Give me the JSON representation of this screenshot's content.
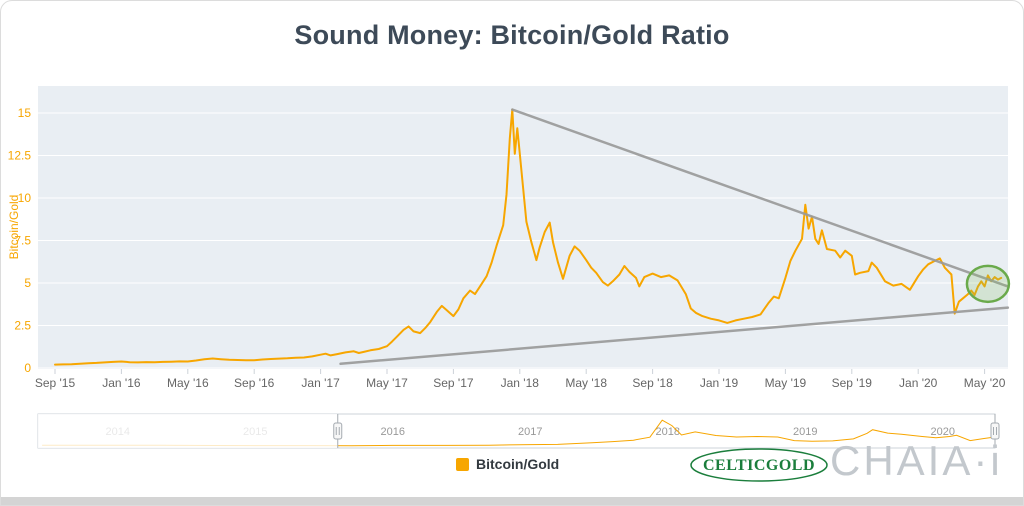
{
  "title": "Sound Money: Bitcoin/Gold Ratio",
  "legend": {
    "label": "Bitcoin/Gold"
  },
  "branding": {
    "celticgold": "CELTICGOLD",
    "chaia": "CHAIA·i"
  },
  "colors": {
    "series": "#f7a600",
    "plot_bg": "#e9eef3",
    "grid": "#ffffff",
    "y_axis": "#f7a600",
    "x_tick": "#666666",
    "tick_mark": "#ccd2d8",
    "trendline": "#999999",
    "annotation_stroke": "#6aaa4b",
    "annotation_fill": "rgba(130,190,100,0.22)",
    "title_text": "#3d4a58",
    "celticgold_green": "#1b7e3c",
    "chaia_gray": "#c3c8cd",
    "nav_label": "#999999",
    "nav_border": "#ccd3d9",
    "nav_handle": "#a5abb1"
  },
  "chart_data": {
    "type": "line",
    "title": "Sound Money: Bitcoin/Gold Ratio",
    "xlabel": "",
    "ylabel": "Bitcoin/Gold",
    "ylim": [
      0,
      16.6
    ],
    "grid": "horizontal white gridlines on light blue-gray plot background",
    "legend_position": "bottom-center",
    "x_unit": "months since Sep 2015",
    "yticks": [
      0,
      2.5,
      5,
      7.5,
      10,
      12.5,
      15
    ],
    "ytick_labels": [
      "0",
      "2.5",
      "5",
      "7.5",
      "10",
      "12.5",
      "15"
    ],
    "xtick_months": [
      0,
      4,
      8,
      12,
      16,
      20,
      24,
      28,
      32,
      36,
      40,
      44,
      48,
      52,
      56
    ],
    "xtick_labels": [
      "Sep '15",
      "Jan '16",
      "May '16",
      "Sep '16",
      "Jan '17",
      "May '17",
      "Sep '17",
      "Jan '18",
      "May '18",
      "Sep '18",
      "Jan '19",
      "May '19",
      "Sep '19",
      "Jan '20",
      "May '20"
    ],
    "series": [
      {
        "name": "Bitcoin/Gold",
        "points": [
          [
            0,
            0.2
          ],
          [
            0.5,
            0.21
          ],
          [
            1,
            0.22
          ],
          [
            1.5,
            0.25
          ],
          [
            2,
            0.28
          ],
          [
            2.5,
            0.3
          ],
          [
            3,
            0.33
          ],
          [
            3.5,
            0.36
          ],
          [
            4,
            0.38
          ],
          [
            4.5,
            0.34
          ],
          [
            5,
            0.33
          ],
          [
            5.5,
            0.35
          ],
          [
            6,
            0.34
          ],
          [
            6.5,
            0.36
          ],
          [
            7,
            0.37
          ],
          [
            7.5,
            0.39
          ],
          [
            8,
            0.38
          ],
          [
            8.5,
            0.44
          ],
          [
            9,
            0.52
          ],
          [
            9.5,
            0.56
          ],
          [
            10,
            0.52
          ],
          [
            10.5,
            0.48
          ],
          [
            11,
            0.47
          ],
          [
            11.5,
            0.46
          ],
          [
            12,
            0.46
          ],
          [
            12.5,
            0.5
          ],
          [
            13,
            0.53
          ],
          [
            13.5,
            0.55
          ],
          [
            14,
            0.57
          ],
          [
            14.5,
            0.6
          ],
          [
            15,
            0.62
          ],
          [
            15.5,
            0.68
          ],
          [
            16,
            0.78
          ],
          [
            16.3,
            0.84
          ],
          [
            16.6,
            0.74
          ],
          [
            17,
            0.82
          ],
          [
            17.5,
            0.92
          ],
          [
            18,
            0.98
          ],
          [
            18.3,
            0.88
          ],
          [
            18.6,
            0.95
          ],
          [
            19,
            1.04
          ],
          [
            19.5,
            1.12
          ],
          [
            20,
            1.28
          ],
          [
            20.3,
            1.55
          ],
          [
            20.6,
            1.85
          ],
          [
            21,
            2.25
          ],
          [
            21.3,
            2.45
          ],
          [
            21.6,
            2.15
          ],
          [
            22,
            2.05
          ],
          [
            22.3,
            2.35
          ],
          [
            22.6,
            2.7
          ],
          [
            23,
            3.3
          ],
          [
            23.3,
            3.65
          ],
          [
            23.6,
            3.4
          ],
          [
            24,
            3.05
          ],
          [
            24.3,
            3.45
          ],
          [
            24.6,
            4.1
          ],
          [
            25,
            4.55
          ],
          [
            25.3,
            4.35
          ],
          [
            25.6,
            4.8
          ],
          [
            26,
            5.4
          ],
          [
            26.3,
            6.2
          ],
          [
            26.6,
            7.2
          ],
          [
            27,
            8.4
          ],
          [
            27.2,
            10.2
          ],
          [
            27.4,
            13.5
          ],
          [
            27.55,
            15.2
          ],
          [
            27.7,
            12.6
          ],
          [
            27.85,
            14.1
          ],
          [
            28,
            12.6
          ],
          [
            28.2,
            10.6
          ],
          [
            28.4,
            8.6
          ],
          [
            28.7,
            7.4
          ],
          [
            29,
            6.35
          ],
          [
            29.2,
            7.1
          ],
          [
            29.5,
            8
          ],
          [
            29.8,
            8.55
          ],
          [
            30,
            7.4
          ],
          [
            30.3,
            6.2
          ],
          [
            30.6,
            5.25
          ],
          [
            31,
            6.6
          ],
          [
            31.3,
            7.15
          ],
          [
            31.6,
            6.9
          ],
          [
            32,
            6.35
          ],
          [
            32.3,
            5.9
          ],
          [
            32.6,
            5.6
          ],
          [
            33,
            5.05
          ],
          [
            33.3,
            4.85
          ],
          [
            33.6,
            5.1
          ],
          [
            34,
            5.5
          ],
          [
            34.3,
            6
          ],
          [
            34.6,
            5.65
          ],
          [
            35,
            5.3
          ],
          [
            35.2,
            4.8
          ],
          [
            35.5,
            5.35
          ],
          [
            36,
            5.55
          ],
          [
            36.5,
            5.35
          ],
          [
            37,
            5.45
          ],
          [
            37.5,
            5.15
          ],
          [
            38,
            4.35
          ],
          [
            38.3,
            3.5
          ],
          [
            38.6,
            3.25
          ],
          [
            39,
            3.05
          ],
          [
            39.5,
            2.9
          ],
          [
            40,
            2.8
          ],
          [
            40.5,
            2.65
          ],
          [
            41,
            2.8
          ],
          [
            41.5,
            2.9
          ],
          [
            42,
            3
          ],
          [
            42.5,
            3.15
          ],
          [
            43,
            3.85
          ],
          [
            43.3,
            4.2
          ],
          [
            43.6,
            4.1
          ],
          [
            44,
            5.3
          ],
          [
            44.3,
            6.3
          ],
          [
            44.6,
            6.9
          ],
          [
            45,
            7.6
          ],
          [
            45.2,
            9.6
          ],
          [
            45.4,
            8.2
          ],
          [
            45.6,
            8.9
          ],
          [
            45.8,
            7.6
          ],
          [
            46,
            7.3
          ],
          [
            46.2,
            8.1
          ],
          [
            46.5,
            7
          ],
          [
            47,
            6.9
          ],
          [
            47.3,
            6.5
          ],
          [
            47.6,
            6.9
          ],
          [
            48,
            6.6
          ],
          [
            48.2,
            5.5
          ],
          [
            48.5,
            5.6
          ],
          [
            49,
            5.7
          ],
          [
            49.2,
            6.2
          ],
          [
            49.5,
            5.9
          ],
          [
            50,
            5.1
          ],
          [
            50.5,
            4.85
          ],
          [
            51,
            4.95
          ],
          [
            51.5,
            4.6
          ],
          [
            52,
            5.4
          ],
          [
            52.3,
            5.8
          ],
          [
            52.6,
            6.1
          ],
          [
            53,
            6.3
          ],
          [
            53.3,
            6.45
          ],
          [
            53.6,
            5.9
          ],
          [
            54,
            5.5
          ],
          [
            54.2,
            3.2
          ],
          [
            54.45,
            3.9
          ],
          [
            54.7,
            4.1
          ],
          [
            55,
            4.35
          ],
          [
            55.2,
            4.55
          ],
          [
            55.4,
            4.3
          ],
          [
            55.6,
            4.8
          ],
          [
            55.8,
            5.1
          ],
          [
            56,
            4.8
          ],
          [
            56.2,
            5.45
          ],
          [
            56.4,
            5.1
          ],
          [
            56.6,
            5.35
          ],
          [
            56.8,
            5.2
          ],
          [
            57,
            5.3
          ]
        ]
      }
    ],
    "trendlines": [
      {
        "name": "descending resistance",
        "from": [
          27.55,
          15.2
        ],
        "to": [
          57.4,
          4.8
        ]
      },
      {
        "name": "ascending support",
        "from": [
          17.2,
          0.25
        ],
        "to": [
          57.4,
          3.55
        ]
      }
    ],
    "annotation": {
      "type": "circle",
      "x": 56.2,
      "y": 4.95,
      "note": "breakout highlight at wedge apex"
    }
  },
  "navigator": {
    "year_labels": [
      "2014",
      "2015",
      "2016",
      "2017",
      "2018",
      "2019",
      "2020"
    ],
    "year_values": [
      2014,
      2015,
      2016,
      2017,
      2018,
      2019,
      2020
    ],
    "range": [
      2013.42,
      2020.38
    ],
    "selected_start": 2015.6,
    "selected_end": 2020.38,
    "points": [
      [
        2013.45,
        0.4
      ],
      [
        2014,
        0.5
      ],
      [
        2014.3,
        0.42
      ],
      [
        2014.7,
        0.3
      ],
      [
        2015,
        0.26
      ],
      [
        2015.4,
        0.23
      ],
      [
        2015.7,
        0.2
      ],
      [
        2016,
        0.36
      ],
      [
        2016.4,
        0.38
      ],
      [
        2016.7,
        0.47
      ],
      [
        2017,
        0.8
      ],
      [
        2017.2,
        0.95
      ],
      [
        2017.45,
        1.9
      ],
      [
        2017.6,
        2.6
      ],
      [
        2017.75,
        3.4
      ],
      [
        2017.87,
        5.2
      ],
      [
        2017.96,
        15.2
      ],
      [
        2018.03,
        12
      ],
      [
        2018.1,
        6.5
      ],
      [
        2018.2,
        8.3
      ],
      [
        2018.35,
        6.2
      ],
      [
        2018.5,
        5.3
      ],
      [
        2018.65,
        5.6
      ],
      [
        2018.8,
        5.3
      ],
      [
        2018.92,
        3.2
      ],
      [
        2019.05,
        2.8
      ],
      [
        2019.2,
        3
      ],
      [
        2019.35,
        4.2
      ],
      [
        2019.45,
        7.5
      ],
      [
        2019.49,
        9.6
      ],
      [
        2019.6,
        7.6
      ],
      [
        2019.7,
        6.9
      ],
      [
        2019.85,
        5.6
      ],
      [
        2019.95,
        4.9
      ],
      [
        2020.05,
        5.6
      ],
      [
        2020.1,
        6.3
      ],
      [
        2020.2,
        3.2
      ],
      [
        2020.3,
        4.4
      ],
      [
        2020.38,
        5.3
      ]
    ]
  }
}
